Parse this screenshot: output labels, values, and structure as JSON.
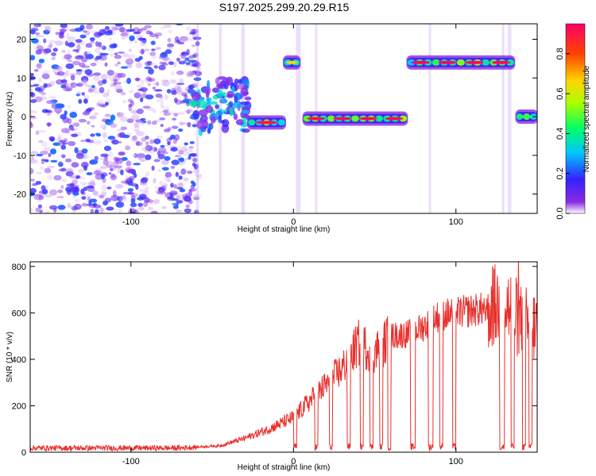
{
  "title": "S197.2025.299.20.29.R15",
  "chart_data": [
    {
      "type": "heatmap",
      "title": "S197.2025.299.20.29.R15",
      "xlabel": "Height of straight line (km)",
      "ylabel": "Frequency (Hz)",
      "xlim": [
        -162,
        150
      ],
      "ylim": [
        -25,
        24
      ],
      "xticks": [
        -100,
        0,
        100
      ],
      "xtick_labels": [
        "-100",
        "0",
        "100"
      ],
      "yticks": [
        20,
        10,
        0,
        -10,
        -20
      ],
      "ytick_labels": [
        "20",
        "10",
        "0",
        "-10",
        "-20"
      ],
      "colorbar": {
        "label": "Normalized spectral amplitude",
        "range": [
          0.0,
          0.95
        ],
        "ticks": [
          0.0,
          0.2,
          0.4,
          0.6,
          0.8
        ],
        "tick_labels": [
          "0.0",
          "0.2",
          "0.4",
          "0.6",
          "0.8"
        ],
        "colormap": [
          "#ffffff",
          "#8a2be2",
          "#3322ff",
          "#00c8ff",
          "#00ff66",
          "#aaff00",
          "#ffd400",
          "#ff4400",
          "#ff0066"
        ]
      },
      "noise_region_x": [
        -162,
        -62
      ],
      "features": [
        {
          "x_start": -63,
          "x_end": -28,
          "freq": 3,
          "peak": 0.35,
          "kind": "transition"
        },
        {
          "x_start": -28,
          "x_end": -5,
          "freq": -1.5,
          "peak": 0.9
        },
        {
          "x_start": -6,
          "x_end": 4,
          "freq": 14,
          "peak": 0.65
        },
        {
          "x_start": 6,
          "x_end": 70,
          "freq": -0.5,
          "peak": 0.92
        },
        {
          "x_start": 70,
          "x_end": 136,
          "freq": 14,
          "peak": 0.95
        },
        {
          "x_start": 137,
          "x_end": 150,
          "freq": 0,
          "peak": 0.45
        }
      ]
    },
    {
      "type": "line",
      "xlabel": "Height of straight line (km)",
      "ylabel": "SNR (10 * v/v)",
      "xlim": [
        -162,
        150
      ],
      "ylim": [
        0,
        820
      ],
      "xticks": [
        -100,
        0,
        100
      ],
      "xtick_labels": [
        "-100",
        "0",
        "100"
      ],
      "yticks": [
        0,
        200,
        400,
        600,
        800
      ],
      "ytick_labels": [
        "0",
        "200",
        "400",
        "600",
        "800"
      ],
      "color": "#e8312d",
      "trend_points": [
        [
          -162,
          18
        ],
        [
          -70,
          18
        ],
        [
          -45,
          28
        ],
        [
          -30,
          60
        ],
        [
          -15,
          100
        ],
        [
          0,
          150
        ],
        [
          10,
          220
        ],
        [
          20,
          290
        ],
        [
          30,
          360
        ],
        [
          40,
          470
        ],
        [
          50,
          430
        ],
        [
          60,
          500
        ],
        [
          70,
          510
        ],
        [
          80,
          540
        ],
        [
          90,
          590
        ],
        [
          100,
          600
        ],
        [
          110,
          610
        ],
        [
          120,
          620
        ],
        [
          130,
          640
        ],
        [
          140,
          560
        ],
        [
          150,
          540
        ]
      ],
      "dropouts": [
        [
          0,
          2
        ],
        [
          13,
          15
        ],
        [
          22,
          24
        ],
        [
          33,
          35
        ],
        [
          41,
          43
        ],
        [
          47,
          49
        ],
        [
          53,
          55
        ],
        [
          58,
          60
        ],
        [
          72,
          75
        ],
        [
          83,
          86
        ],
        [
          90,
          92
        ],
        [
          98,
          100
        ],
        [
          127,
          130
        ],
        [
          134,
          136
        ],
        [
          141,
          143
        ],
        [
          145,
          147
        ]
      ]
    }
  ]
}
